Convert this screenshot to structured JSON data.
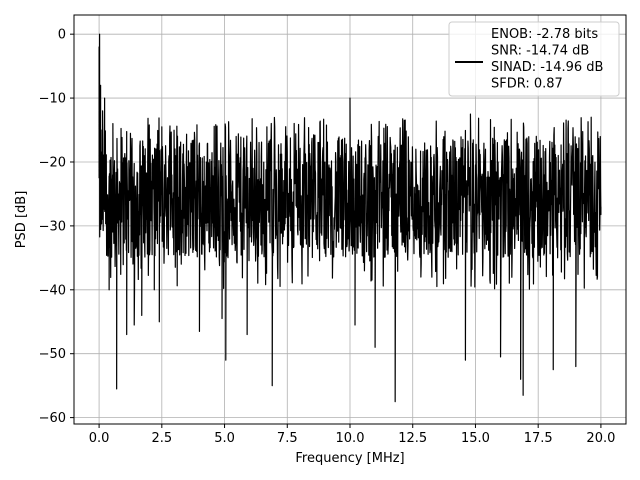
{
  "chart_data": {
    "type": "line",
    "xlabel": "Frequency [MHz]",
    "ylabel": "PSD [dB]",
    "xlim": [
      -1.0,
      21.0
    ],
    "ylim": [
      -61.0,
      3.0
    ],
    "x_ticks": [
      0.0,
      2.5,
      5.0,
      7.5,
      10.0,
      12.5,
      15.0,
      17.5,
      20.0
    ],
    "x_tick_labels": [
      "0.0",
      "2.5",
      "5.0",
      "7.5",
      "10.0",
      "12.5",
      "15.0",
      "17.5",
      "20.0"
    ],
    "y_ticks": [
      0,
      -10,
      -20,
      -30,
      -40,
      -50,
      -60
    ],
    "y_tick_labels": [
      "0",
      "−10",
      "−20",
      "−30",
      "−40",
      "−50",
      "−60"
    ],
    "grid": true,
    "legend_position": "top-right",
    "series": [
      {
        "name": "ENOB: -2.78 bits\nSNR: -14.74 dB\nSINAD: -14.96 dB\nSFDR: 0.87",
        "name_lines": [
          "ENOB: -2.78 bits",
          "SNR: -14.74 dB",
          "SINAD: -14.96 dB",
          "SFDR: 0.87"
        ],
        "color": "#000000",
        "x_start": 0.0,
        "x_end": 20.0,
        "points": [
          [
            0.0,
            -2.0
          ],
          [
            0.02,
            0.0
          ],
          [
            0.04,
            -18.0
          ],
          [
            0.06,
            -8.0
          ],
          [
            0.08,
            -15.0
          ],
          [
            0.1,
            -29.0
          ],
          [
            0.14,
            -12.0
          ],
          [
            0.18,
            -27.0
          ],
          [
            0.22,
            -10.0
          ],
          [
            0.3,
            -26.0
          ],
          [
            0.4,
            -40.0
          ],
          [
            0.55,
            -14.0
          ],
          [
            0.7,
            -55.5
          ],
          [
            1.1,
            -47.0
          ],
          [
            1.4,
            -45.5
          ],
          [
            1.7,
            -44.0
          ],
          [
            2.2,
            -40.0
          ],
          [
            2.5,
            -14.5
          ],
          [
            2.4,
            -45.0
          ],
          [
            4.0,
            -46.5
          ],
          [
            4.9,
            -44.5
          ],
          [
            5.05,
            -51.0
          ],
          [
            5.9,
            -47.0
          ],
          [
            6.9,
            -55.0
          ],
          [
            10.0,
            -10.0
          ],
          [
            10.2,
            -45.5
          ],
          [
            11.0,
            -49.0
          ],
          [
            11.8,
            -57.5
          ],
          [
            14.6,
            -51.0
          ],
          [
            14.8,
            -12.5
          ],
          [
            16.0,
            -50.5
          ],
          [
            16.8,
            -54.0
          ],
          [
            16.9,
            -56.5
          ],
          [
            18.1,
            -52.5
          ],
          [
            19.0,
            -52.0
          ],
          [
            19.9,
            -20.0
          ],
          [
            20.0,
            -27.0
          ]
        ],
        "noise_floor_band": [
          -35.0,
          -16.0
        ],
        "approx_mean": -25.0
      }
    ]
  }
}
